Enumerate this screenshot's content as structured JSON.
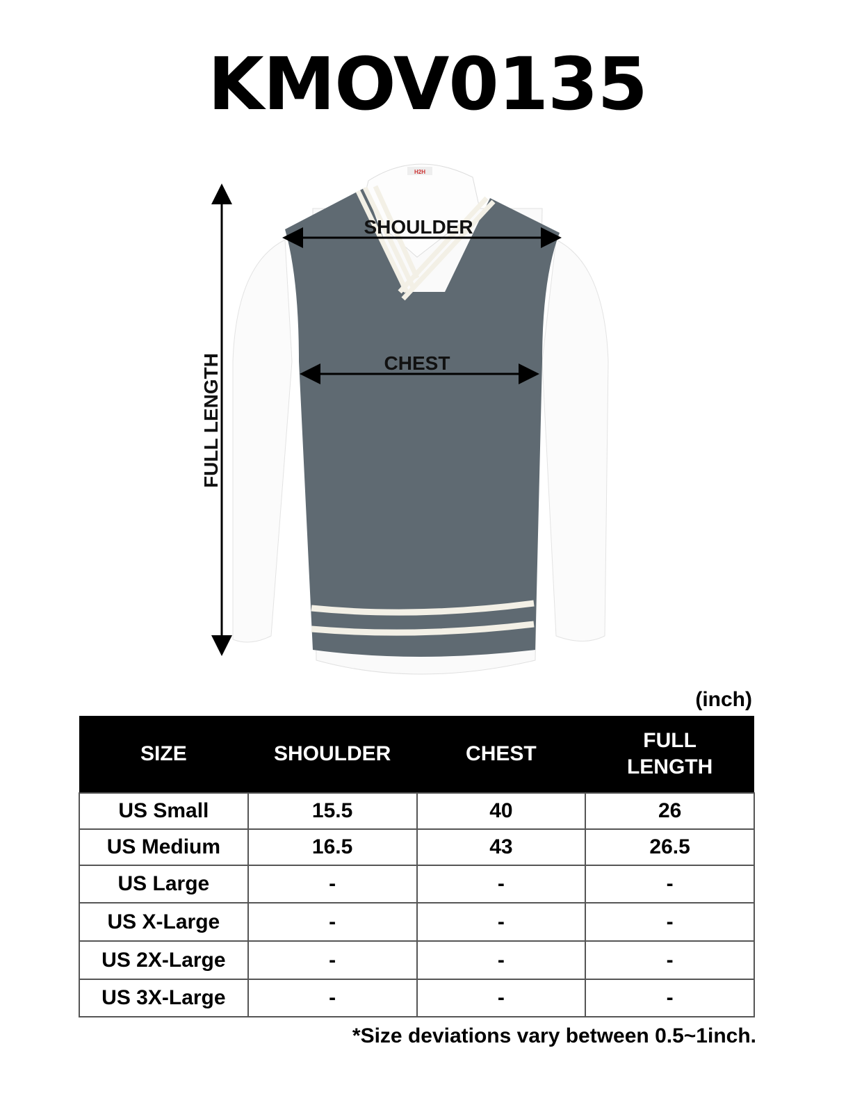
{
  "title": "KMOV0135",
  "brand_tag": "H2H",
  "measure_labels": {
    "shoulder": "SHOULDER",
    "chest": "CHEST",
    "full_length": "FULL LENGTH"
  },
  "colors": {
    "vest": "#5f6a72",
    "stripe": "#f3f0e6",
    "shirt": "#ffffff"
  },
  "unit": "(inch)",
  "table": {
    "headers": [
      "SIZE",
      "SHOULDER",
      "CHEST",
      "FULL\nLENGTH"
    ],
    "rows": [
      [
        "US Small",
        "15.5",
        "40",
        "26"
      ],
      [
        "US Medium",
        "16.5",
        "43",
        "26.5"
      ],
      [
        "US Large",
        "-",
        "-",
        "-"
      ],
      [
        "US X-Large",
        "-",
        "-",
        "-"
      ],
      [
        "US 2X-Large",
        "-",
        "-",
        "-"
      ],
      [
        "US 3X-Large",
        "-",
        "-",
        "-"
      ]
    ]
  },
  "note": "*Size deviations vary between 0.5~1inch."
}
